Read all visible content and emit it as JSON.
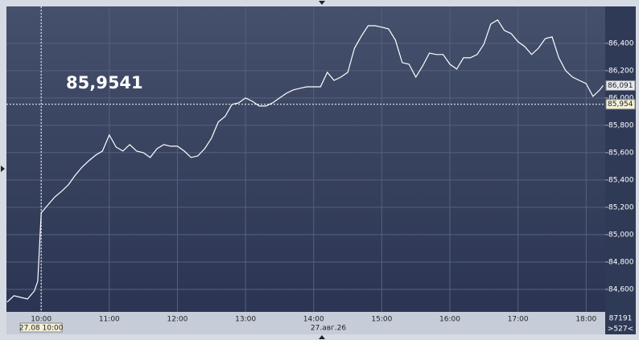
{
  "chart_data": {
    "type": "line",
    "x": [
      9.5,
      9.6,
      9.7,
      9.8,
      9.9,
      9.95,
      10.0,
      10.1,
      10.2,
      10.3,
      10.4,
      10.5,
      10.6,
      10.7,
      10.8,
      10.9,
      11.0,
      11.1,
      11.2,
      11.3,
      11.4,
      11.5,
      11.6,
      11.7,
      11.8,
      11.9,
      12.0,
      12.1,
      12.2,
      12.3,
      12.4,
      12.5,
      12.6,
      12.7,
      12.8,
      12.9,
      13.0,
      13.1,
      13.2,
      13.3,
      13.4,
      13.5,
      13.6,
      13.7,
      13.8,
      13.9,
      14.0,
      14.1,
      14.2,
      14.3,
      14.4,
      14.5,
      14.6,
      14.7,
      14.8,
      14.9,
      15.0,
      15.1,
      15.2,
      15.3,
      15.4,
      15.5,
      15.6,
      15.7,
      15.8,
      15.9,
      16.0,
      16.1,
      16.2,
      16.3,
      16.4,
      16.5,
      16.6,
      16.7,
      16.8,
      16.9,
      17.0,
      17.1,
      17.2,
      17.3,
      17.4,
      17.5,
      17.6,
      17.7,
      17.8,
      17.9,
      18.0,
      18.1,
      18.2,
      18.25
    ],
    "values": [
      84.506,
      84.553,
      84.541,
      84.529,
      84.588,
      84.659,
      85.159,
      85.218,
      85.276,
      85.318,
      85.365,
      85.435,
      85.494,
      85.541,
      85.582,
      85.612,
      85.729,
      85.641,
      85.612,
      85.659,
      85.612,
      85.6,
      85.565,
      85.629,
      85.659,
      85.647,
      85.647,
      85.612,
      85.565,
      85.576,
      85.629,
      85.706,
      85.824,
      85.865,
      85.953,
      85.965,
      86.0,
      85.976,
      85.941,
      85.941,
      85.965,
      86.0,
      86.035,
      86.059,
      86.071,
      86.082,
      86.082,
      86.082,
      86.188,
      86.129,
      86.153,
      86.188,
      86.365,
      86.453,
      86.529,
      86.529,
      86.518,
      86.506,
      86.424,
      86.259,
      86.247,
      86.153,
      86.235,
      86.329,
      86.318,
      86.318,
      86.247,
      86.212,
      86.294,
      86.294,
      86.318,
      86.394,
      86.541,
      86.571,
      86.494,
      86.471,
      86.412,
      86.376,
      86.318,
      86.365,
      86.435,
      86.447,
      86.294,
      86.2,
      86.153,
      86.129,
      86.106,
      86.012,
      86.059,
      86.091
    ],
    "color": "#ffffff",
    "xlim": [
      9.49,
      18.28
    ],
    "xticks": [
      {
        "value": 10,
        "label": "10:00"
      },
      {
        "value": 11,
        "label": "11:00"
      },
      {
        "value": 12,
        "label": "12:00"
      },
      {
        "value": 13,
        "label": "13:00"
      },
      {
        "value": 14,
        "label": "14:00"
      },
      {
        "value": 15,
        "label": "15:00"
      },
      {
        "value": 16,
        "label": "16:00"
      },
      {
        "value": 17,
        "label": "17:00"
      },
      {
        "value": 18,
        "label": "18:00"
      }
    ],
    "ylim": [
      84.435,
      86.67
    ],
    "yticks": [
      {
        "value": 84.6,
        "label": "84,600"
      },
      {
        "value": 84.8,
        "label": "84,800"
      },
      {
        "value": 85.0,
        "label": "85,000"
      },
      {
        "value": 85.2,
        "label": "85,200"
      },
      {
        "value": 85.4,
        "label": "85,400"
      },
      {
        "value": 85.6,
        "label": "85,600"
      },
      {
        "value": 85.8,
        "label": "85,800"
      },
      {
        "value": 86.0,
        "label": "86,000"
      },
      {
        "value": 86.2,
        "label": "86,200"
      },
      {
        "value": 86.4,
        "label": "86,400"
      }
    ],
    "grid": true,
    "date_label": "27.авг.26",
    "last_price": {
      "value": 86.091,
      "label": "86,091"
    },
    "crosshair": {
      "x": 10,
      "x_label": "27.08 10:00",
      "y": {
        "value": 85.954,
        "label": "85,954"
      },
      "readout": "85,9541"
    },
    "corner_top": "87191",
    "corner_bottom": ">527<"
  }
}
